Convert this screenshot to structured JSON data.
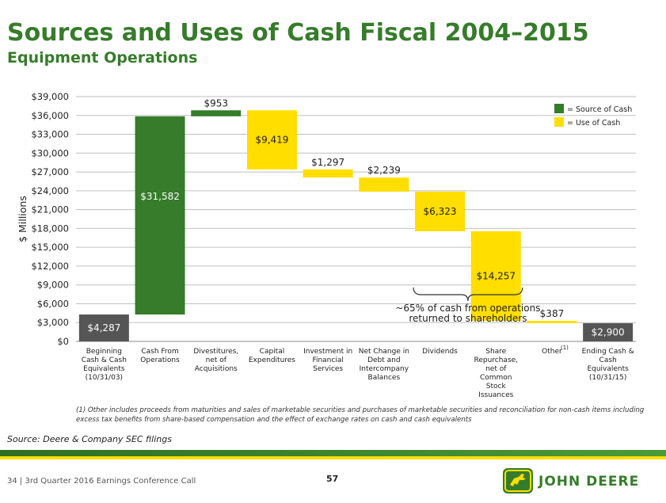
{
  "header": {
    "title": "Sources and Uses of Cash Fiscal 2004–2015",
    "subtitle": "Equipment Operations"
  },
  "chart_data": {
    "type": "bar",
    "subtype": "waterfall",
    "ylabel": "$ Millions",
    "ylim": [
      0,
      39000
    ],
    "yticks": [
      0,
      3000,
      6000,
      9000,
      12000,
      15000,
      18000,
      21000,
      24000,
      27000,
      30000,
      33000,
      36000,
      39000
    ],
    "ytick_labels": [
      "$0",
      "$3,000",
      "$6,000",
      "$9,000",
      "$12,000",
      "$15,000",
      "$18,000",
      "$21,000",
      "$24,000",
      "$27,000",
      "$30,000",
      "$33,000",
      "$36,000",
      "$39,000"
    ],
    "grid": true,
    "categories": [
      {
        "lines": [
          "Beginning",
          "Cash & Cash",
          "Equivalents",
          "(10/31/03)"
        ]
      },
      {
        "lines": [
          "Cash From",
          "Operations"
        ]
      },
      {
        "lines": [
          "Divestitures,",
          "net of",
          "Acquisitions"
        ]
      },
      {
        "lines": [
          "Capital",
          "Expenditures"
        ]
      },
      {
        "lines": [
          "Investment in",
          "Financial",
          "Services"
        ]
      },
      {
        "lines": [
          "Net Change in",
          "Debt and",
          "Intercompany",
          "Balances"
        ]
      },
      {
        "lines": [
          "Dividends"
        ]
      },
      {
        "lines": [
          "Share",
          "Repurchase,",
          "net of",
          "Common",
          "Stock",
          "Issuances"
        ]
      },
      {
        "lines": [
          "Other"
        ],
        "superscript": "(1)"
      },
      {
        "lines": [
          "Ending Cash &",
          "Cash",
          "Equivalents",
          "(10/31/15)"
        ]
      }
    ],
    "bars": [
      {
        "base": 0,
        "top": 4287,
        "label": "$4,287",
        "kind": "total"
      },
      {
        "base": 4287,
        "top": 35869,
        "label": "$31,582",
        "kind": "source"
      },
      {
        "base": 35869,
        "top": 36822,
        "label": "$953",
        "kind": "source"
      },
      {
        "base": 27403,
        "top": 36822,
        "label": "$9,419",
        "kind": "use"
      },
      {
        "base": 26106,
        "top": 27403,
        "label": "$1,297",
        "kind": "use"
      },
      {
        "base": 23867,
        "top": 26106,
        "label": "$2,239",
        "kind": "use"
      },
      {
        "base": 17544,
        "top": 23867,
        "label": "$6,323",
        "kind": "use"
      },
      {
        "base": 3287,
        "top": 17544,
        "label": "$14,257",
        "kind": "use"
      },
      {
        "base": 2900,
        "top": 3287,
        "label": "$387",
        "kind": "use"
      },
      {
        "base": 0,
        "top": 2900,
        "label": "$2,900",
        "kind": "total"
      }
    ],
    "legend": {
      "position": "top-right",
      "items": [
        {
          "label": "= Source of Cash",
          "kind": "source"
        },
        {
          "label": "= Use of Cash",
          "kind": "use"
        }
      ]
    },
    "annotation": {
      "lines": [
        "~65% of cash from operations",
        "returned to shareholders"
      ],
      "spans": [
        6,
        7
      ]
    },
    "colors": {
      "source": "#367C2B",
      "use": "#FFDE00",
      "total": "#555555",
      "grid": "#BFBFBF"
    }
  },
  "footnote": "(1) Other includes proceeds from maturities and sales of marketable securities and purchases of marketable securities and reconciliation for non-cash items including excess tax benefits from share-based compensation and the effect of exchange rates on cash and cash equivalents",
  "source": "Source: Deere & Company SEC filings",
  "footer": {
    "text": "34  |  3rd Quarter 2016 Earnings Conference Call",
    "page_number": "57",
    "logo_text": "JOHN DEERE"
  }
}
